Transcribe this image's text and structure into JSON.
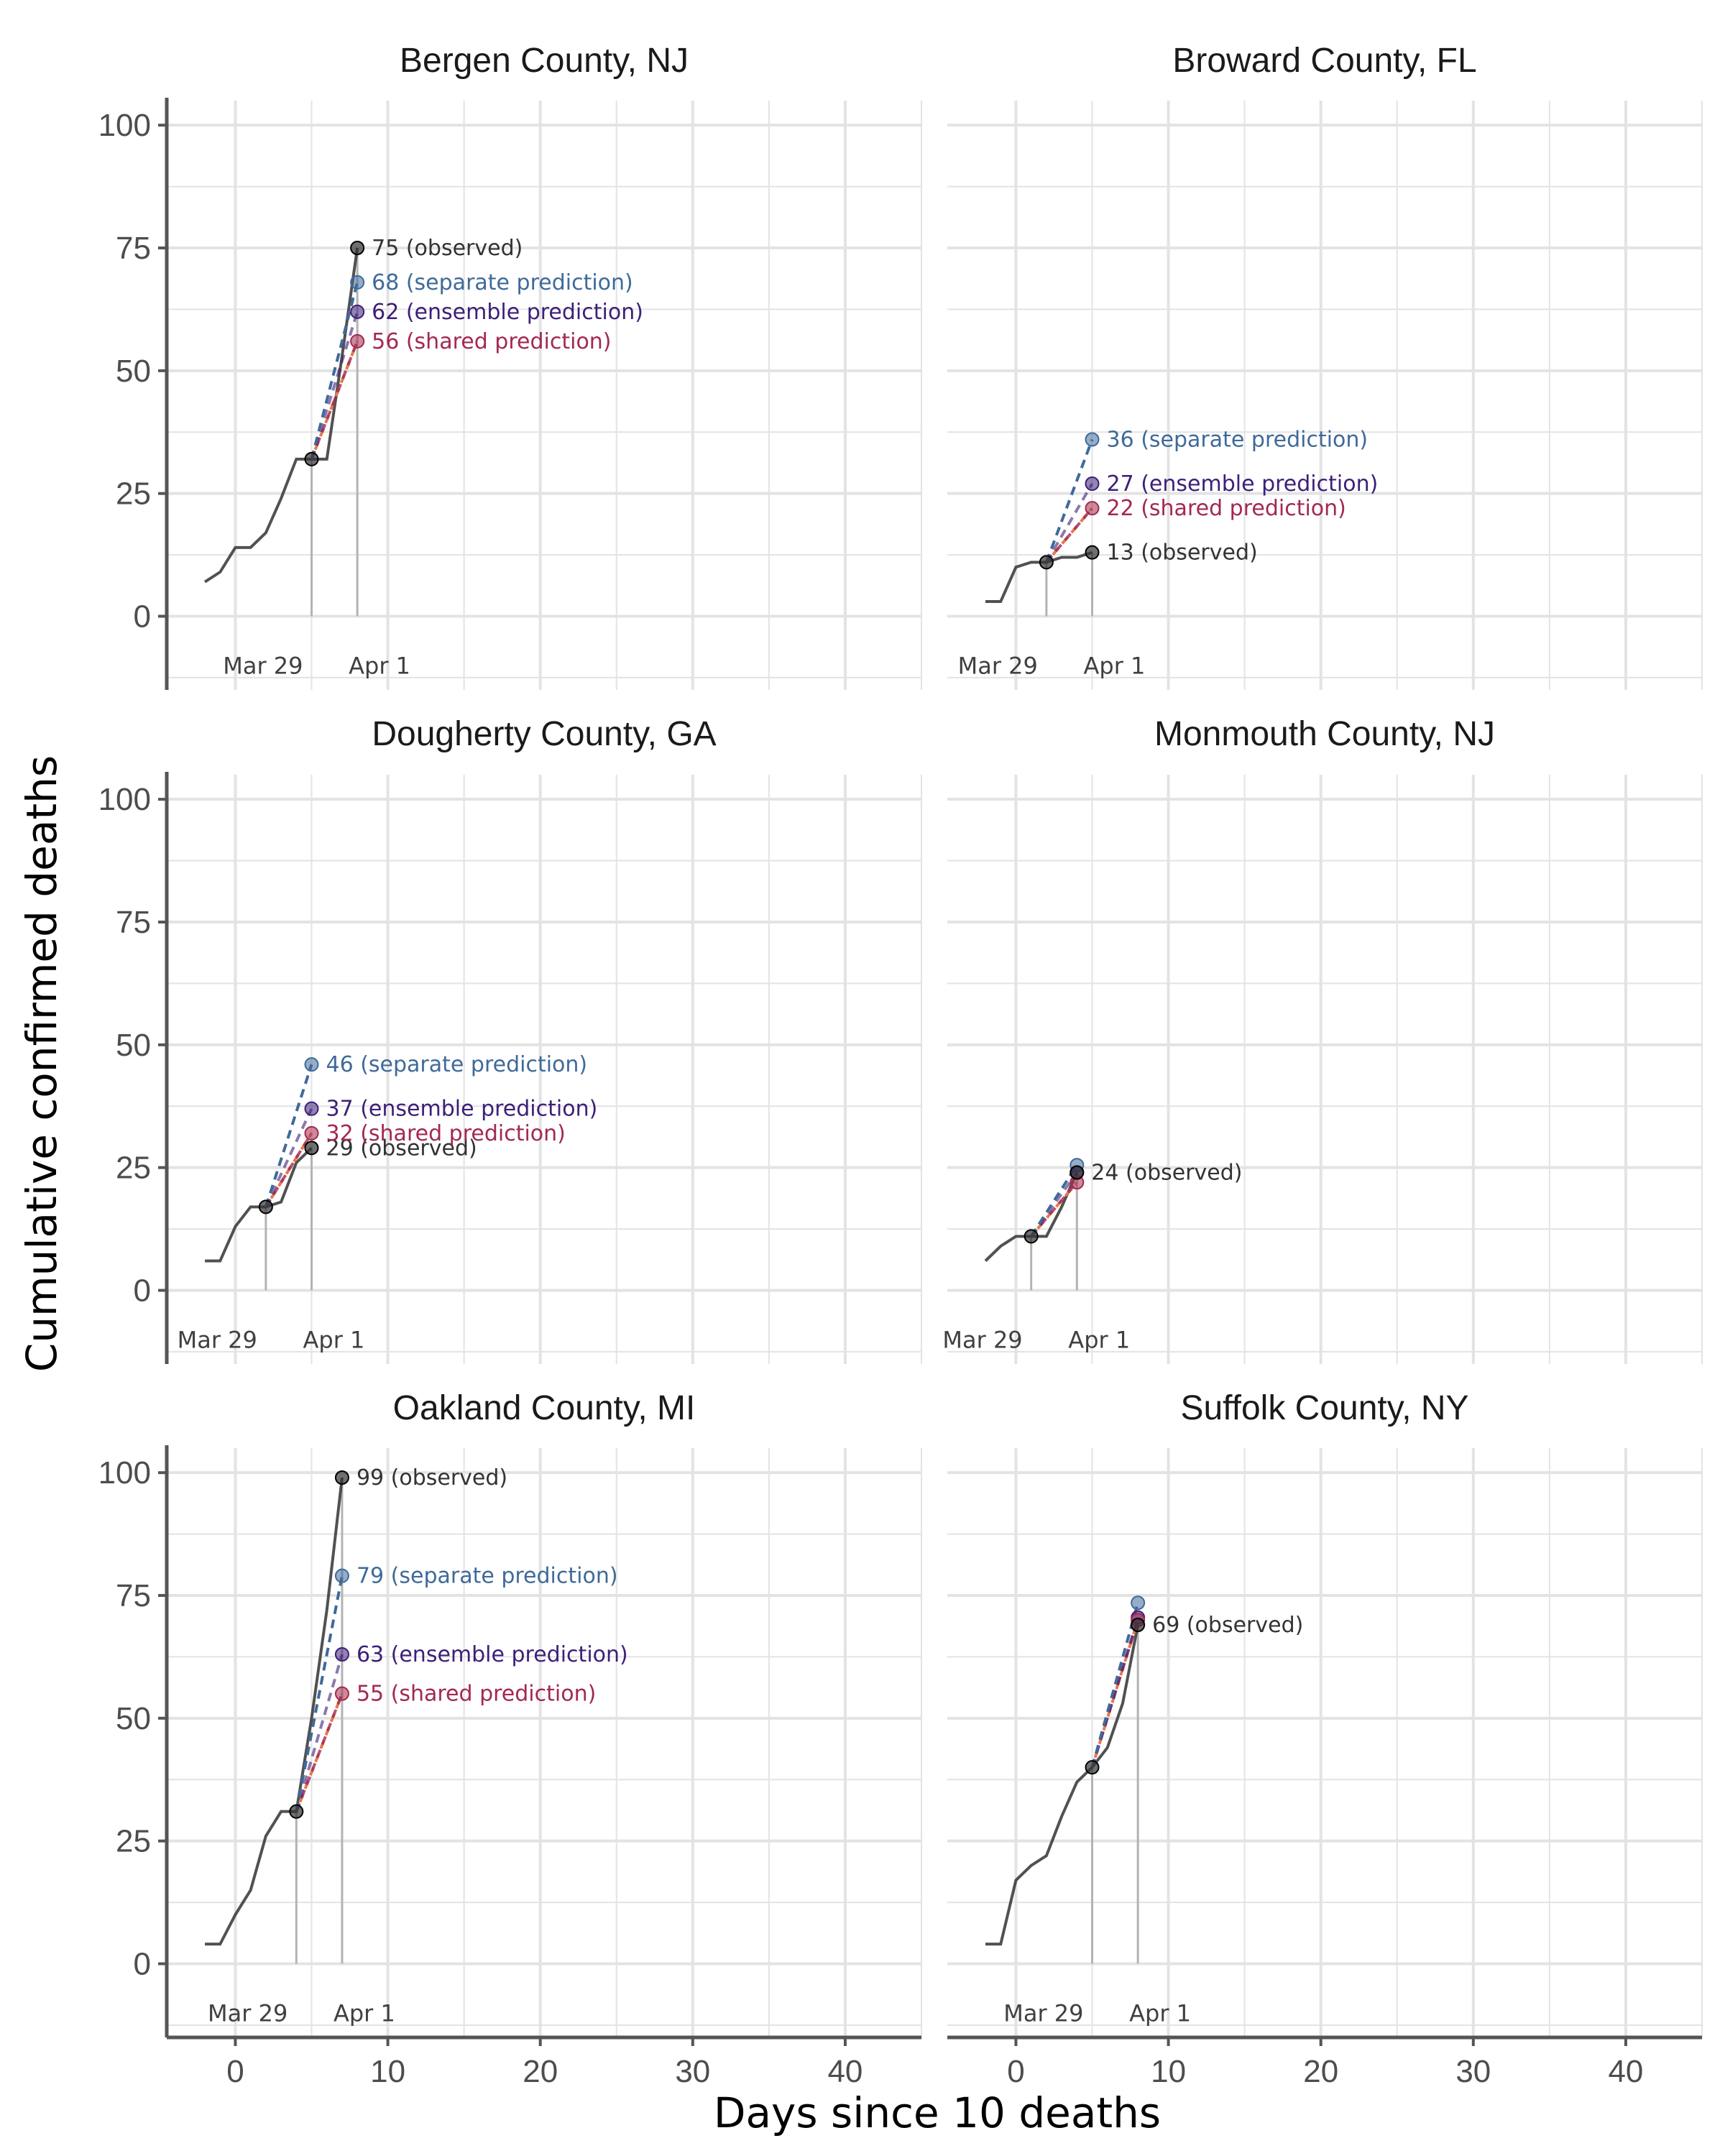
{
  "chart_data": {
    "type": "line",
    "xlabel": "Days since 10 deaths",
    "ylabel": "Cumulative confirmed deaths",
    "xlim": [
      -4.5,
      45
    ],
    "ylim": [
      -15,
      105
    ],
    "xticks": [
      0,
      10,
      20,
      30,
      40
    ],
    "yticks": [
      0,
      25,
      50,
      75,
      100
    ],
    "grid": true,
    "series_names": [
      "observed",
      "separate prediction",
      "ensemble prediction",
      "shared prediction"
    ],
    "colors": {
      "observed": "#333333",
      "separate": "#3f6a9a",
      "ensemble": "#3d1f78",
      "shared": "#a3294f",
      "shared_dash": "#e8784c",
      "grid": "#e3e3e3",
      "axis": "#555555",
      "vline": "#b3b3b3"
    },
    "date_labels": {
      "start": "Mar 29",
      "end": "Apr 1"
    },
    "panels": [
      {
        "title": "Bergen County, NJ",
        "x": [
          -2,
          -1,
          0,
          1,
          2,
          3,
          4,
          5,
          6,
          7,
          8
        ],
        "y": [
          7,
          9,
          14,
          14,
          17,
          24,
          32,
          32,
          32,
          53,
          75
        ],
        "start_x": 5,
        "start_y": 32,
        "end_x": 8,
        "observed": 75,
        "separate": 68,
        "ensemble": 62,
        "shared": 56,
        "labels": {
          "observed": "75  (observed)",
          "separate": "68 (separate prediction)",
          "ensemble": "62 (ensemble prediction)",
          "shared": "56 (shared prediction)"
        }
      },
      {
        "title": "Broward County, FL",
        "x": [
          -2,
          -1,
          0,
          1,
          2,
          3,
          4,
          5
        ],
        "y": [
          3,
          3,
          10,
          11,
          11,
          12,
          12,
          13
        ],
        "start_x": 2,
        "start_y": 11,
        "end_x": 5,
        "observed": 13,
        "separate": 36,
        "ensemble": 27,
        "shared": 22,
        "labels": {
          "observed": "13  (observed)",
          "separate": "36 (separate prediction)",
          "ensemble": "27 (ensemble prediction)",
          "shared": "22 (shared prediction)"
        }
      },
      {
        "title": "Dougherty County, GA",
        "x": [
          -2,
          -1,
          0,
          1,
          2,
          3,
          4,
          5
        ],
        "y": [
          6,
          6,
          13,
          17,
          17,
          18,
          26,
          29
        ],
        "start_x": 2,
        "start_y": 17,
        "end_x": 5,
        "observed": 29,
        "separate": 46,
        "ensemble": 37,
        "shared": 32,
        "labels": {
          "observed": "29  (observed)",
          "separate": "46 (separate prediction)",
          "ensemble": "37 (ensemble prediction)",
          "shared": "32 (shared prediction)"
        }
      },
      {
        "title": "Monmouth County, NJ",
        "x": [
          -2,
          -1,
          0,
          1,
          2,
          3,
          4
        ],
        "y": [
          6,
          9,
          11,
          11,
          11,
          17,
          24
        ],
        "start_x": 1,
        "start_y": 11,
        "end_x": 4,
        "observed": 24,
        "separate": 25.5,
        "ensemble": 24,
        "shared": 22,
        "labels": {
          "observed": "24  (observed)",
          "separate": "",
          "ensemble": "",
          "shared": ""
        }
      },
      {
        "title": "Oakland County, MI",
        "x": [
          -2,
          -1,
          0,
          1,
          2,
          3,
          4,
          5,
          6,
          7
        ],
        "y": [
          4,
          4,
          10,
          15,
          26,
          31,
          31,
          50,
          72,
          99
        ],
        "start_x": 4,
        "start_y": 31,
        "end_x": 7,
        "observed": 99,
        "separate": 79,
        "ensemble": 63,
        "shared": 55,
        "labels": {
          "observed": "99  (observed)",
          "separate": "79 (separate prediction)",
          "ensemble": "63 (ensemble prediction)",
          "shared": "55 (shared prediction)"
        }
      },
      {
        "title": "Suffolk County, NY",
        "x": [
          -2,
          -1,
          0,
          1,
          2,
          3,
          4,
          5,
          6,
          7,
          8
        ],
        "y": [
          4,
          4,
          17,
          20,
          22,
          30,
          37,
          40,
          44,
          53,
          69
        ],
        "start_x": 5,
        "start_y": 40,
        "end_x": 8,
        "observed": 69,
        "separate": 73.5,
        "ensemble": 70.5,
        "shared": 70,
        "labels": {
          "observed": "69  (observed)",
          "separate": "",
          "ensemble": "",
          "shared": ""
        }
      }
    ]
  }
}
